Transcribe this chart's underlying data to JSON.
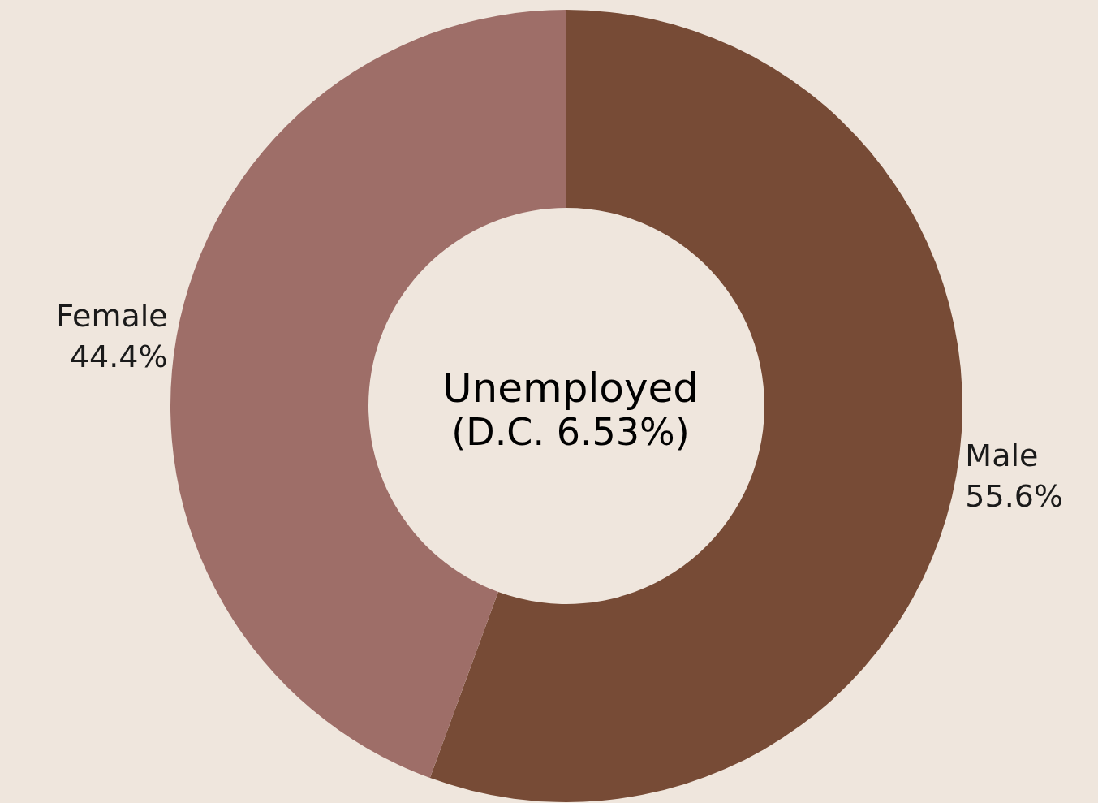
{
  "chart_data": {
    "type": "donut",
    "title": "Unemployed",
    "subtitle": "(D.C. 6.53%)",
    "categories": [
      "Male",
      "Female"
    ],
    "values": [
      55.6,
      44.4
    ],
    "colors": [
      "#774b36",
      "#9e6e68"
    ],
    "value_labels": [
      "55.6%",
      "44.4%"
    ],
    "legend": false
  }
}
